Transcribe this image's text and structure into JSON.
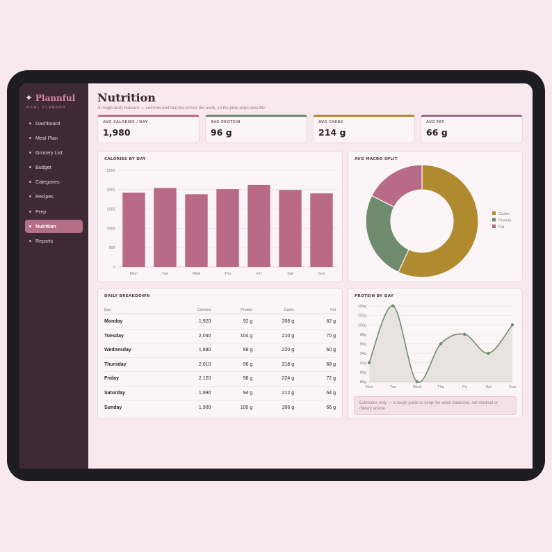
{
  "brand": {
    "name": "Plannful",
    "star": "✦",
    "tagline": "MEAL PLANNER"
  },
  "sidebar": {
    "items": [
      {
        "label": "Dashboard",
        "active": false
      },
      {
        "label": "Meal Plan",
        "active": false
      },
      {
        "label": "Grocery List",
        "active": false
      },
      {
        "label": "Budget",
        "active": false
      },
      {
        "label": "Categories",
        "active": false
      },
      {
        "label": "Recipes",
        "active": false
      },
      {
        "label": "Prep",
        "active": false
      },
      {
        "label": "Nutrition",
        "active": true
      },
      {
        "label": "Reports",
        "active": false
      }
    ]
  },
  "page": {
    "title": "Nutrition",
    "subtitle": "A rough daily balance — calories and macros across the week, so the plan stays sensible"
  },
  "kpis": [
    {
      "label": "AVG CALORIES / DAY",
      "value": "1,980",
      "color": "#b86a86"
    },
    {
      "label": "AVG PROTEIN",
      "value": "96 g",
      "color": "#6f8b6e"
    },
    {
      "label": "AVG CARBS",
      "value": "214 g",
      "color": "#b08a2e"
    },
    {
      "label": "AVG FAT",
      "value": "66 g",
      "color": "#9b6b86"
    }
  ],
  "cards": {
    "calories_title": "CALORIES BY DAY",
    "macro_title": "AVG MACRO SPLIT",
    "breakdown_title": "DAILY BREAKDOWN",
    "protein_title": "PROTEIN BY DAY"
  },
  "table": {
    "headers": [
      "Day",
      "Calories",
      "Protein",
      "Carbs",
      "Fat"
    ],
    "rows": [
      [
        "Monday",
        "1,920",
        "92 g",
        "208 g",
        "62 g"
      ],
      [
        "Tuesday",
        "2,040",
        "104 g",
        "210 g",
        "70 g"
      ],
      [
        "Wednesday",
        "1,880",
        "88 g",
        "220 g",
        "60 g"
      ],
      [
        "Thursday",
        "2,010",
        "96 g",
        "218 g",
        "68 g"
      ],
      [
        "Friday",
        "2,120",
        "98 g",
        "224 g",
        "72 g"
      ],
      [
        "Saturday",
        "1,990",
        "94 g",
        "212 g",
        "64 g"
      ],
      [
        "Sunday",
        "1,900",
        "100 g",
        "206 g",
        "66 g"
      ]
    ]
  },
  "note": "Estimates only — a rough guide to keep the week balanced, not medical or dietary advice.",
  "colors": {
    "bar": "#b86a86",
    "carbs": "#b08a2e",
    "protein": "#6f8b6e",
    "fat": "#b86a86",
    "line": "#6f8b6e"
  },
  "chart_data": [
    {
      "type": "bar",
      "title": "CALORIES BY DAY",
      "categories": [
        "Mon",
        "Tue",
        "Wed",
        "Thu",
        "Fri",
        "Sat",
        "Sun"
      ],
      "values": [
        1920,
        2040,
        1880,
        2010,
        2120,
        1990,
        1900
      ],
      "yticks": [
        0,
        500,
        1000,
        1500,
        2000,
        2500
      ],
      "ylim": [
        0,
        2550
      ],
      "grid": true
    },
    {
      "type": "pie",
      "title": "AVG MACRO SPLIT",
      "donut": true,
      "labels": [
        "Carbs",
        "Protein",
        "Fat"
      ],
      "values": [
        214,
        96,
        66
      ],
      "colors": [
        "#b08a2e",
        "#6f8b6e",
        "#b86a86"
      ],
      "legend": "right"
    },
    {
      "type": "area",
      "title": "PROTEIN BY DAY",
      "categories": [
        "Mon",
        "Tue",
        "Wed",
        "Thu",
        "Fri",
        "Sat",
        "Sun"
      ],
      "values": [
        92,
        104,
        88,
        96,
        98,
        94,
        100
      ],
      "yticks": [
        "88g",
        "90g",
        "92g",
        "94g",
        "96g",
        "98g",
        "100g",
        "102g",
        "104g"
      ],
      "ylim": [
        88,
        104
      ],
      "grid": true
    }
  ]
}
